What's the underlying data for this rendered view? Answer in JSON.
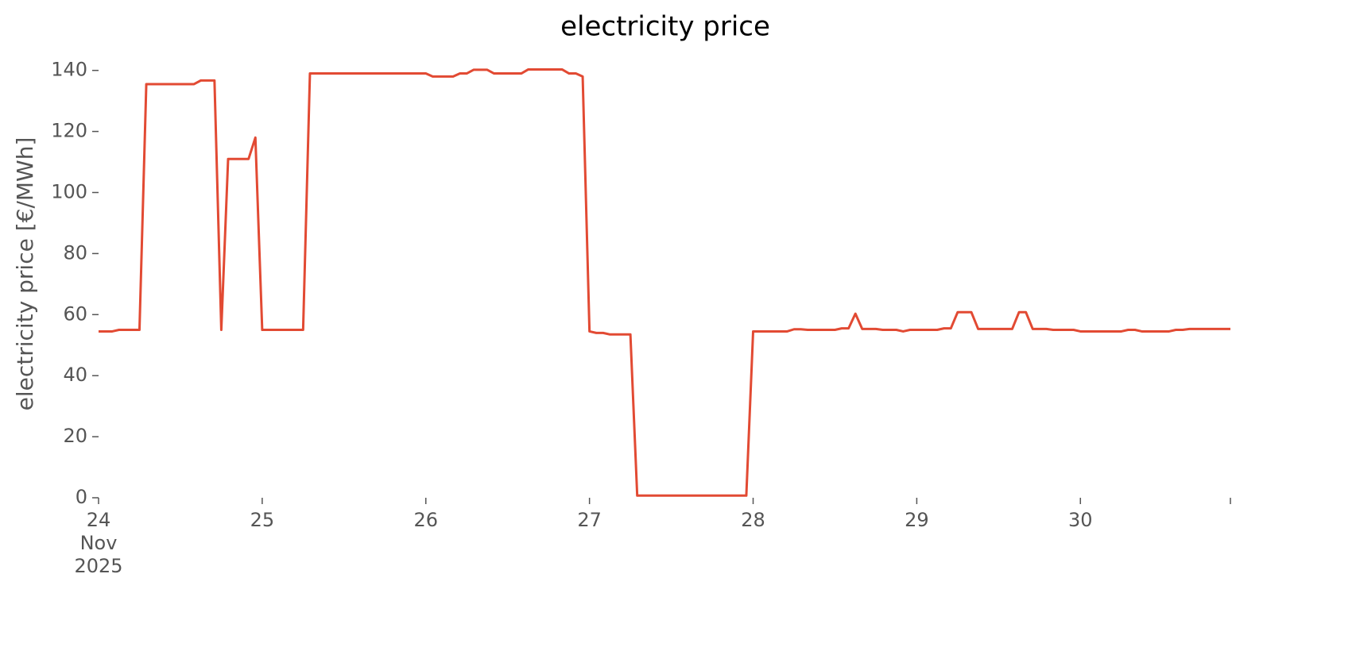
{
  "chart_data": {
    "type": "line",
    "title": "electricity price",
    "ylabel": "electricity price [€/MWh]",
    "color": "#e24a33",
    "x": [
      0,
      1,
      2,
      3,
      4,
      5,
      6,
      7,
      8,
      9,
      10,
      11,
      12,
      13,
      14,
      15,
      16,
      17,
      18,
      19,
      20,
      21,
      22,
      23,
      24,
      25,
      26,
      27,
      28,
      29,
      30,
      31,
      32,
      33,
      34,
      35,
      36,
      37,
      38,
      39,
      40,
      41,
      42,
      43,
      44,
      45,
      46,
      47,
      48,
      49,
      50,
      51,
      52,
      53,
      54,
      55,
      56,
      57,
      58,
      59,
      60,
      61,
      62,
      63,
      64,
      65,
      66,
      67,
      68,
      69,
      70,
      71,
      72,
      73,
      74,
      75,
      76,
      77,
      78,
      79,
      80,
      81,
      82,
      83,
      84,
      85,
      86,
      87,
      88,
      89,
      90,
      91,
      92,
      93,
      94,
      95,
      96,
      97,
      98,
      99,
      100,
      101,
      102,
      103,
      104,
      105,
      106,
      107,
      108,
      109,
      110,
      111,
      112,
      113,
      114,
      115,
      116,
      117,
      118,
      119,
      120,
      121,
      122,
      123,
      124,
      125,
      126,
      127,
      128,
      129,
      130,
      131,
      132,
      133,
      134,
      135,
      136,
      137,
      138,
      139,
      140,
      141,
      142,
      143,
      144,
      145,
      146,
      147,
      148,
      149,
      150,
      151,
      152,
      153,
      154,
      155,
      156,
      157,
      158,
      159,
      160,
      161,
      162,
      163,
      164,
      165,
      166
    ],
    "values": [
      54.5,
      54.5,
      54.5,
      55,
      55,
      55,
      55,
      135.5,
      135.5,
      135.5,
      135.5,
      135.5,
      135.5,
      135.5,
      135.5,
      136.7,
      136.7,
      136.7,
      55,
      111,
      111,
      111,
      111,
      118,
      55,
      55,
      55,
      55,
      55,
      55,
      55,
      139,
      139,
      139,
      139,
      139,
      139,
      139,
      139,
      139,
      139,
      139,
      139,
      139,
      139,
      139,
      139,
      139,
      139,
      138,
      138,
      138,
      138,
      139,
      139,
      140.2,
      140.2,
      140.2,
      139,
      139,
      139,
      139,
      139,
      140.3,
      140.3,
      140.3,
      140.3,
      140.3,
      140.3,
      139,
      139,
      138,
      54.5,
      54,
      54,
      53.5,
      53.5,
      53.5,
      53.5,
      0.7,
      0.7,
      0.7,
      0.7,
      0.7,
      0.7,
      0.7,
      0.7,
      0.7,
      0.7,
      0.7,
      0.7,
      0.7,
      0.7,
      0.7,
      0.7,
      0.7,
      54.5,
      54.5,
      54.5,
      54.5,
      54.5,
      54.5,
      55.2,
      55.2,
      55,
      55,
      55,
      55,
      55,
      55.5,
      55.5,
      60.3,
      55.3,
      55.3,
      55.3,
      55,
      55,
      55,
      54.5,
      55,
      55,
      55,
      55,
      55,
      55.5,
      55.5,
      60.8,
      60.8,
      60.8,
      55.3,
      55.3,
      55.3,
      55.3,
      55.3,
      55.3,
      60.8,
      60.8,
      55.3,
      55.3,
      55.3,
      55,
      55,
      55,
      55,
      54.5,
      54.5,
      54.5,
      54.5,
      54.5,
      54.5,
      54.5,
      55,
      55,
      54.5,
      54.5,
      54.5,
      54.5,
      54.5,
      55,
      55,
      55.3,
      55.3,
      55.3,
      55.3,
      55.3,
      55.3,
      55.3
    ],
    "xlim": [
      0,
      166
    ],
    "xticks": [
      {
        "value": 0,
        "label": "24\nNov\n2025"
      },
      {
        "value": 24,
        "label": "25"
      },
      {
        "value": 48,
        "label": "26"
      },
      {
        "value": 72,
        "label": "27"
      },
      {
        "value": 96,
        "label": "28"
      },
      {
        "value": 120,
        "label": "29"
      },
      {
        "value": 144,
        "label": "30"
      }
    ],
    "ylim": [
      0,
      142
    ],
    "yticks": [
      0,
      20,
      40,
      60,
      80,
      100,
      120,
      140
    ]
  }
}
